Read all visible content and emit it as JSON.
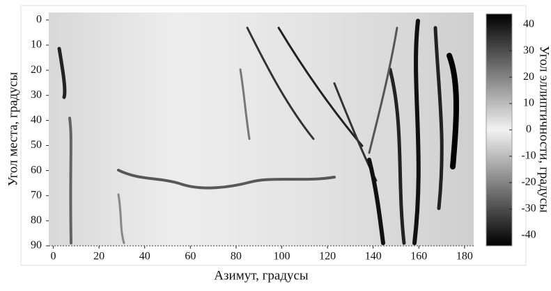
{
  "chart_data": {
    "type": "heatmap",
    "xlabel": "Азимут, градусы",
    "ylabel": "Угол места, градусы",
    "colorbar_label": "Угол эллиптичности, градусы",
    "xlim": [
      -2,
      184
    ],
    "xticks": [
      0,
      20,
      40,
      60,
      80,
      100,
      120,
      140,
      160,
      180
    ],
    "ylim": [
      90,
      -3
    ],
    "yticks": [
      0,
      10,
      20,
      30,
      40,
      50,
      60,
      70,
      80,
      90
    ],
    "clim": [
      -44,
      44
    ],
    "cticks": [
      40,
      30,
      20,
      10,
      0,
      -10,
      -20,
      -30,
      -40
    ],
    "colormap": [
      "#000000",
      "#f2f2f2",
      "#000000"
    ]
  }
}
